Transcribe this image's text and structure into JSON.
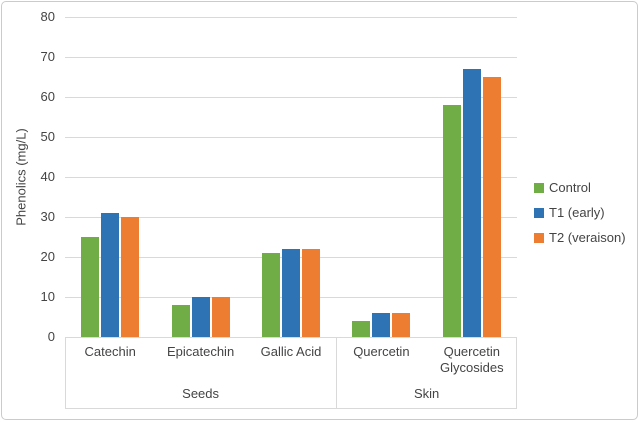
{
  "chart_data": {
    "type": "bar",
    "title": "",
    "xlabel": "",
    "ylabel": "Phenolics (mg/L)",
    "ylim": [
      0,
      80
    ],
    "ytick_step": 10,
    "ytick_labels": [
      "0",
      "10",
      "20",
      "30",
      "40",
      "50",
      "60",
      "70",
      "80"
    ],
    "grid": true,
    "legend_position": "right",
    "categories": [
      "Catechin",
      "Epicatechin",
      "Gallic Acid",
      "Quercetin",
      "Quercetin Glycosides"
    ],
    "groups": [
      {
        "label": "Seeds",
        "span": 3
      },
      {
        "label": "Skin",
        "span": 2
      }
    ],
    "series": [
      {
        "name": "Control",
        "color": "#70AD47",
        "values": [
          25,
          8,
          21,
          4,
          58
        ]
      },
      {
        "name": "T1 (early)",
        "color": "#2E74B5",
        "values": [
          31,
          10,
          22,
          6,
          67
        ]
      },
      {
        "name": "T2 (veraison)",
        "color": "#ED7D31",
        "values": [
          30,
          10,
          22,
          6,
          65
        ]
      }
    ]
  },
  "style": {
    "grid_color": "#D9D9D9",
    "text_color": "#444444",
    "frame_border_color": "#CBCBCB",
    "background": "#FFFFFF"
  }
}
